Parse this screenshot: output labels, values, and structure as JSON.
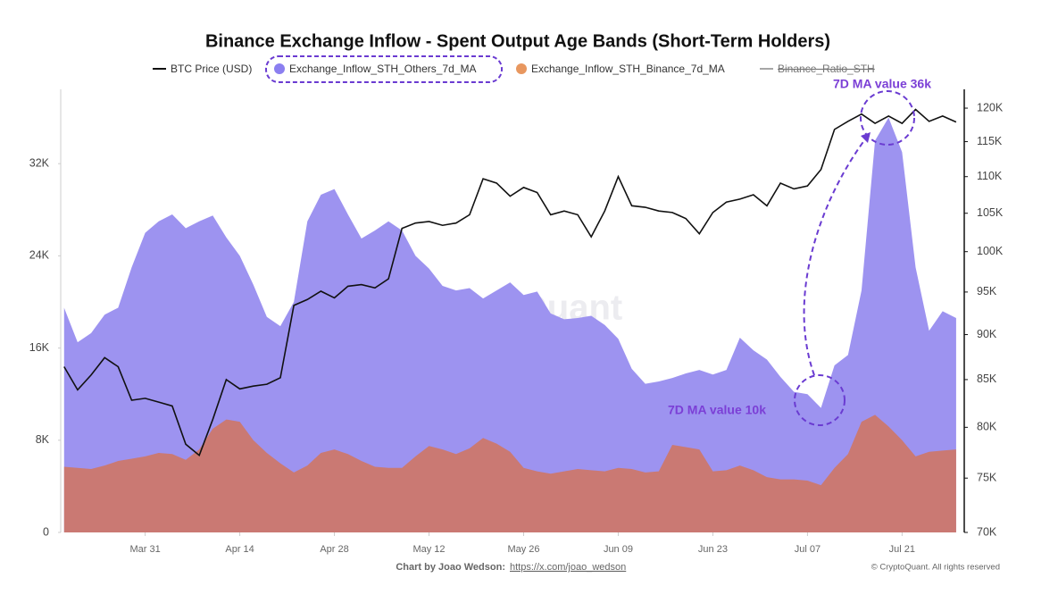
{
  "chart_data": {
    "type": "area",
    "title": "Binance Exchange Inflow - Spent Output Age Bands (Short-Term Holders)",
    "x": [
      0,
      2,
      4,
      6,
      8,
      10,
      12,
      14,
      16,
      18,
      20,
      22,
      24,
      26,
      28,
      30,
      32,
      34,
      36,
      38,
      40,
      42,
      44,
      46,
      48,
      50,
      52,
      54,
      56,
      58,
      60,
      62,
      64,
      66,
      68,
      70,
      72,
      74,
      76,
      78,
      80,
      82,
      84,
      86,
      88,
      90,
      92,
      94,
      96,
      98,
      100,
      102,
      104,
      106,
      108,
      110,
      112,
      114,
      116,
      118,
      120,
      122,
      124,
      126,
      128,
      130,
      132
    ],
    "xlim": [
      -0.5,
      133.2
    ],
    "xticks": [
      {
        "value": 12,
        "label": "Mar 31"
      },
      {
        "value": 26,
        "label": "Apr 14"
      },
      {
        "value": 40,
        "label": "Apr 28"
      },
      {
        "value": 54,
        "label": "May 12"
      },
      {
        "value": 68,
        "label": "May 26"
      },
      {
        "value": 82,
        "label": "Jun 09"
      },
      {
        "value": 96,
        "label": "Jun 23"
      },
      {
        "value": 110,
        "label": "Jul 07"
      },
      {
        "value": 124,
        "label": "Jul 21"
      }
    ],
    "ylim": [
      0,
      38450
    ],
    "yticks": [
      0,
      {
        "value": 8000,
        "label": "8K"
      },
      {
        "value": 16000,
        "label": "16K"
      },
      {
        "value": 24000,
        "label": "24K"
      },
      {
        "value": 32000,
        "label": "32K"
      }
    ],
    "y2lim": [
      70000,
      122900
    ],
    "y2log": true,
    "y2ticks": [
      {
        "value": 70000,
        "label": "70K"
      },
      {
        "value": 75000,
        "label": "75K"
      },
      {
        "value": 80000,
        "label": "80K"
      },
      {
        "value": 85000,
        "label": "85K"
      },
      {
        "value": 90000,
        "label": "90K"
      },
      {
        "value": 95000,
        "label": "95K"
      },
      {
        "value": 100000,
        "label": "100K"
      },
      {
        "value": 105000,
        "label": "105K"
      },
      {
        "value": 110000,
        "label": "110K"
      },
      {
        "value": 115000,
        "label": "115K"
      },
      {
        "value": 120000,
        "label": "120K"
      }
    ],
    "series": [
      {
        "name": "BTC Price (USD)",
        "color": "#111111",
        "kind": "line",
        "axis": "y2",
        "values": [
          86400,
          83900,
          85500,
          87400,
          86400,
          82800,
          83000,
          82600,
          82200,
          78300,
          77200,
          80800,
          85000,
          84000,
          84300,
          84500,
          85200,
          93400,
          94100,
          95100,
          94300,
          95700,
          95900,
          95500,
          96600,
          103000,
          103700,
          103900,
          103400,
          103700,
          104800,
          109700,
          109100,
          107300,
          108500,
          107800,
          104800,
          105300,
          104800,
          101900,
          105300,
          110000,
          106000,
          105800,
          105300,
          105100,
          104300,
          102300,
          105100,
          106500,
          106900,
          107500,
          106000,
          109100,
          108300,
          108700,
          111000,
          116800,
          118000,
          119100,
          117700,
          118800,
          117700,
          119800,
          118000,
          118800,
          117900
        ]
      },
      {
        "name": "Exchange_Inflow_STH_Others_7d_MA",
        "color": "#9d93f0",
        "kind": "area",
        "values": [
          19500,
          16500,
          17300,
          18900,
          19500,
          23000,
          26000,
          27000,
          27600,
          26400,
          27000,
          27500,
          25600,
          24000,
          21500,
          18700,
          17900,
          20000,
          27000,
          29300,
          29800,
          27600,
          25500,
          26200,
          27000,
          26200,
          24000,
          22900,
          21400,
          21000,
          21200,
          20300,
          21000,
          21700,
          20600,
          20900,
          19000,
          18500,
          18600,
          18800,
          18000,
          16800,
          14200,
          12900,
          13100,
          13400,
          13800,
          14100,
          13700,
          14100,
          16900,
          15800,
          15000,
          13500,
          12200,
          12000,
          10800,
          14500,
          15400,
          21000,
          34000,
          36000,
          33000,
          23000,
          17500,
          19200,
          18600
        ]
      },
      {
        "name": "Exchange_Inflow_STH_Binance_7d_MA",
        "color": "#d9704a",
        "kind": "area",
        "values": [
          5700,
          5600,
          5500,
          5800,
          6200,
          6400,
          6600,
          6900,
          6800,
          6300,
          7200,
          9000,
          9800,
          9600,
          8000,
          6900,
          6000,
          5200,
          5800,
          6900,
          7200,
          6800,
          6200,
          5700,
          5600,
          5600,
          6600,
          7500,
          7200,
          6800,
          7300,
          8200,
          7700,
          7000,
          5600,
          5300,
          5100,
          5300,
          5500,
          5400,
          5300,
          5600,
          5500,
          5200,
          5300,
          7600,
          7400,
          7200,
          5300,
          5400,
          5800,
          5400,
          4800,
          4600,
          4600,
          4500,
          4100,
          5600,
          6800,
          9600,
          10200,
          9200,
          8000,
          6600,
          7000,
          7100,
          7200
        ]
      },
      {
        "name": "Binance_Ratio_STH",
        "color": "#888888",
        "kind": "line",
        "hidden": true
      }
    ],
    "annotations": [
      "7D MA value 36k",
      "7D MA value 10k"
    ],
    "watermark": "CryptoQuant",
    "footer": {
      "credit": "Chart by Joao Wedson:",
      "link": "https://x.com/joao_wedson",
      "copyright": "© CryptoQuant. All rights reserved"
    }
  }
}
